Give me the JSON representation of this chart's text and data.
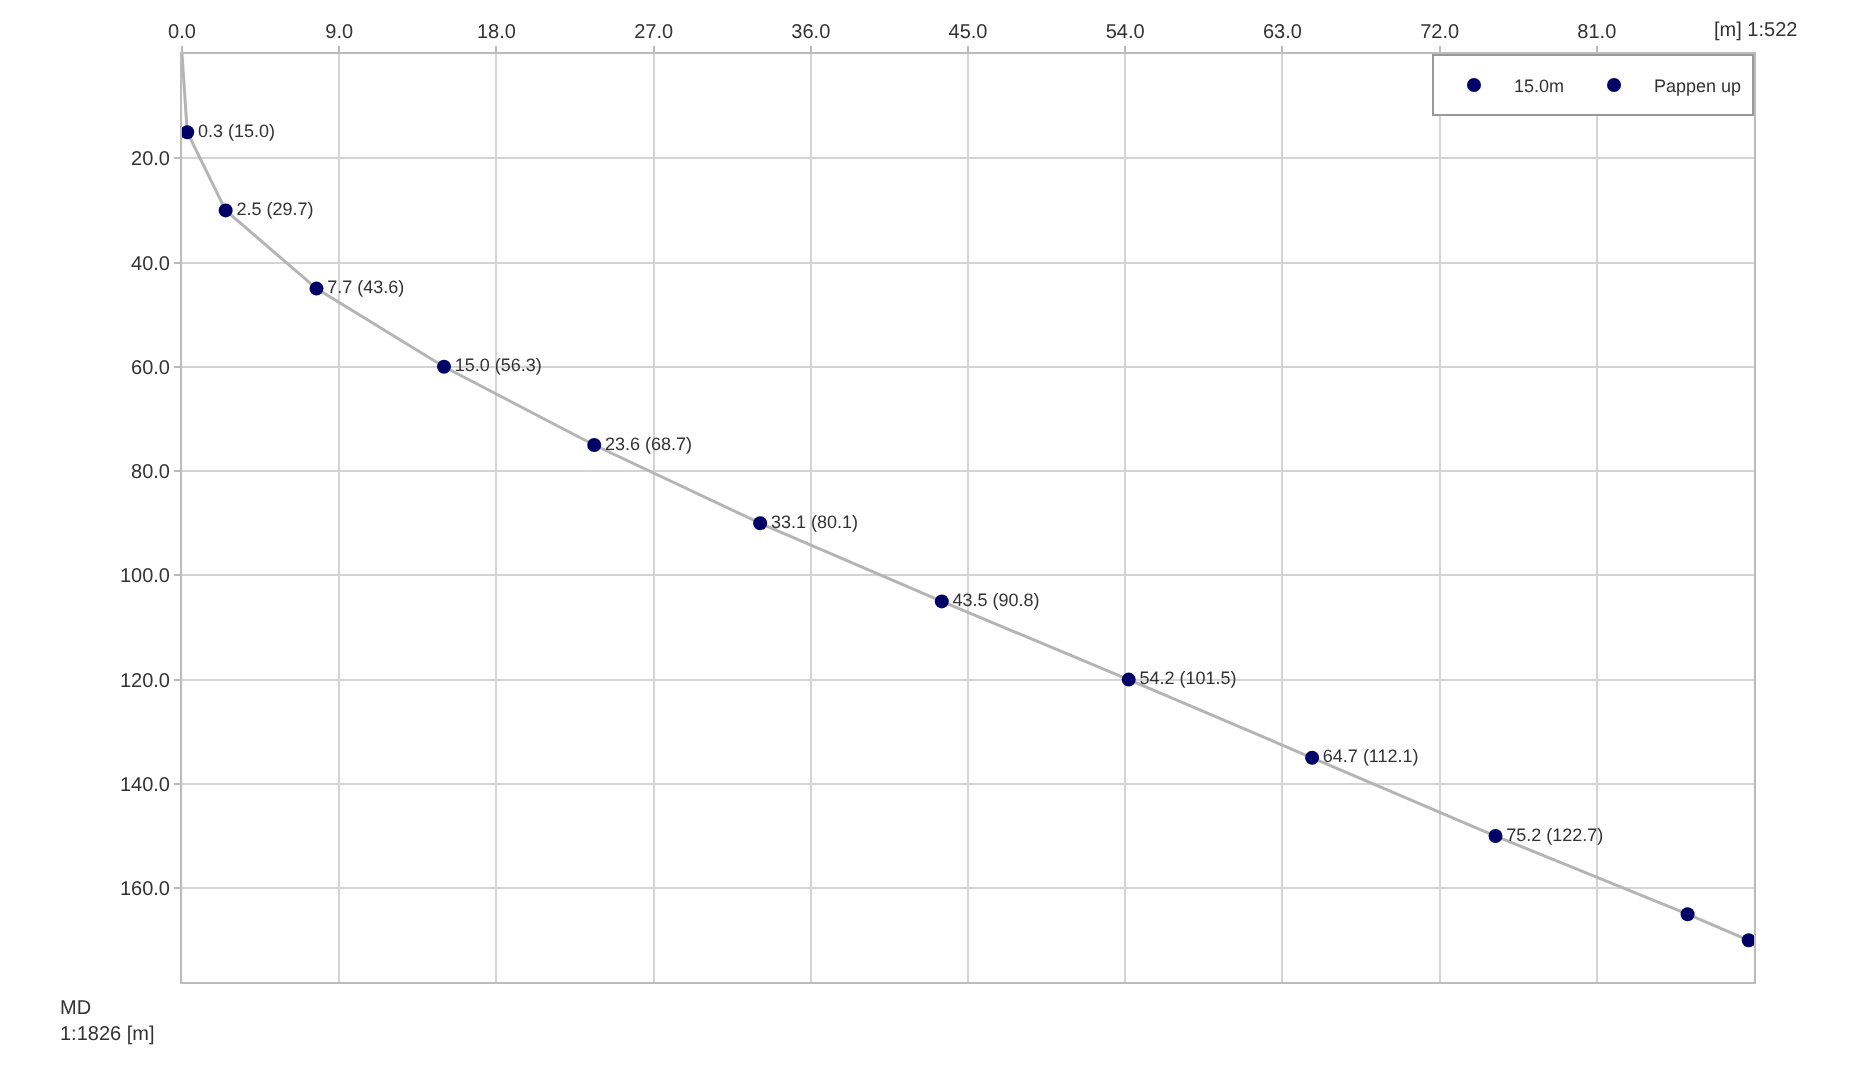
{
  "chart_data": {
    "type": "line",
    "xlabel": "[m] 1:522",
    "ylabel": "MD\n1:1826 [m]",
    "xlim": [
      0,
      90
    ],
    "ylim": [
      178,
      0
    ],
    "xticks": [
      {
        "value": 0,
        "label": "0.0"
      },
      {
        "value": 9,
        "label": "9.0"
      },
      {
        "value": 18,
        "label": "18.0"
      },
      {
        "value": 27,
        "label": "27.0"
      },
      {
        "value": 36,
        "label": "36.0"
      },
      {
        "value": 45,
        "label": "45.0"
      },
      {
        "value": 54,
        "label": "54.0"
      },
      {
        "value": 63,
        "label": "63.0"
      },
      {
        "value": 72,
        "label": "72.0"
      },
      {
        "value": 81,
        "label": "81.0"
      }
    ],
    "yticks": [
      {
        "value": 20,
        "label": "20.0"
      },
      {
        "value": 40,
        "label": "40.0"
      },
      {
        "value": 60,
        "label": "60.0"
      },
      {
        "value": 80,
        "label": "80.0"
      },
      {
        "value": 100,
        "label": "100.0"
      },
      {
        "value": 120,
        "label": "120.0"
      },
      {
        "value": 140,
        "label": "140.0"
      },
      {
        "value": 160,
        "label": "160.0"
      }
    ],
    "grid": true,
    "legend": "top right",
    "series": [
      {
        "color": "#b4b4b4",
        "marker": "none",
        "x": [
          0,
          0.3,
          2.5,
          7.7,
          15.0,
          23.6,
          33.1,
          43.5,
          54.2,
          64.7,
          75.2,
          86.2,
          89.7
        ],
        "values": [
          0,
          15,
          30,
          45,
          60,
          75,
          90,
          105,
          120,
          135,
          150,
          165,
          170
        ]
      },
      {
        "type": "scatter",
        "name": "15.0m",
        "color": "#000066",
        "marker": "circle",
        "x": [
          0.3,
          2.5,
          7.7,
          15.0,
          23.6,
          33.1,
          43.5,
          54.2,
          64.7,
          75.2,
          86.2
        ],
        "values": [
          15,
          30,
          45,
          60,
          75,
          90,
          105,
          120,
          135,
          150,
          165
        ],
        "value_labels": [
          "0.3 (15.0)",
          "2.5 (29.7)",
          "7.7 (43.6)",
          "15.0 (56.3)",
          "23.6 (68.7)",
          "33.1 (80.1)",
          "43.5 (90.8)",
          "54.2 (101.5)",
          "64.7 (112.1)",
          "75.2 (122.7)",
          null
        ]
      },
      {
        "type": "scatter",
        "name": "Pappen up",
        "color": "#000066",
        "marker": "circle",
        "x": [
          89.7
        ],
        "values": [
          170
        ]
      }
    ]
  }
}
